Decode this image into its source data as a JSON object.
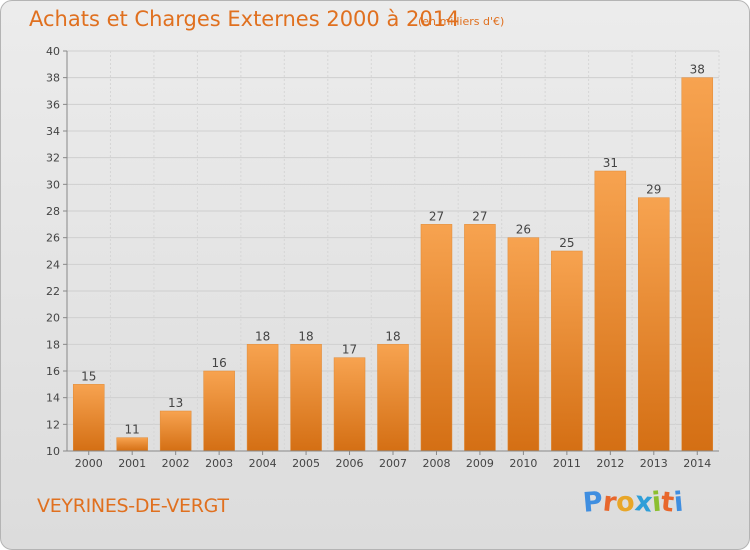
{
  "header": {
    "title": "Achats et Charges Externes 2000 à 2014",
    "unit": "(en milliers d'€)"
  },
  "footer": {
    "commune": "VEYRINES-DE-VERGT",
    "logo_letters": [
      "P",
      "r",
      "o",
      "x",
      "i",
      "t",
      "i"
    ],
    "logo_colors": [
      "#3f8ee0",
      "#e8672c",
      "#e8a628",
      "#2f9ed8",
      "#8cbf30",
      "#e8672c",
      "#3f8ee0"
    ]
  },
  "colors": {
    "bar_light": "#f7a350",
    "bar_dark": "#d46f14",
    "title": "#e0701f"
  },
  "chart_data": {
    "type": "bar",
    "categories": [
      "2000",
      "2001",
      "2002",
      "2003",
      "2004",
      "2005",
      "2006",
      "2007",
      "2008",
      "2009",
      "2010",
      "2011",
      "2012",
      "2013",
      "2014"
    ],
    "values": [
      15,
      11,
      13,
      16,
      18,
      18,
      17,
      18,
      27,
      27,
      26,
      25,
      31,
      29,
      38
    ],
    "title": "Achats et Charges Externes 2000 à 2014",
    "ylim": [
      10,
      40
    ],
    "yticks": [
      10,
      12,
      14,
      16,
      18,
      20,
      22,
      24,
      26,
      28,
      30,
      32,
      34,
      36,
      38,
      40
    ],
    "grid": true
  }
}
